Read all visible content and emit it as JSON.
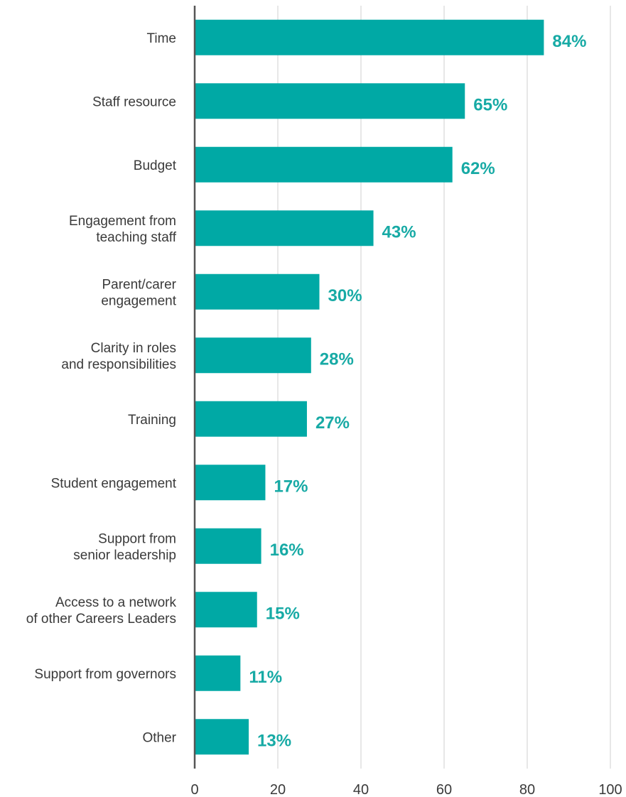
{
  "colors": {
    "bar": "#00a9a5",
    "value_label": "#17aaa5",
    "grid": "#cfcfcf",
    "axis": "#555555"
  },
  "chart_data": {
    "type": "bar",
    "orientation": "horizontal",
    "title": "",
    "xlabel": "",
    "ylabel": "",
    "xlim": [
      0,
      100
    ],
    "x_ticks": [
      0,
      20,
      40,
      60,
      80,
      100
    ],
    "grid": true,
    "legend": "none",
    "categories": [
      [
        "Time"
      ],
      [
        "Staff resource"
      ],
      [
        "Budget"
      ],
      [
        "Engagement from",
        "teaching staff"
      ],
      [
        "Parent/carer",
        "engagement"
      ],
      [
        "Clarity in roles",
        "and responsibilities"
      ],
      [
        "Training"
      ],
      [
        "Student engagement"
      ],
      [
        "Support from",
        "senior leadership"
      ],
      [
        "Access to a network",
        "of other Careers Leaders"
      ],
      [
        "Support from governors"
      ],
      [
        "Other"
      ]
    ],
    "values": [
      84,
      65,
      62,
      43,
      30,
      28,
      27,
      17,
      16,
      15,
      11,
      13
    ],
    "value_labels": [
      "84%",
      "65%",
      "62%",
      "43%",
      "30%",
      "28%",
      "27%",
      "17%",
      "16%",
      "15%",
      "11%",
      "13%"
    ]
  }
}
